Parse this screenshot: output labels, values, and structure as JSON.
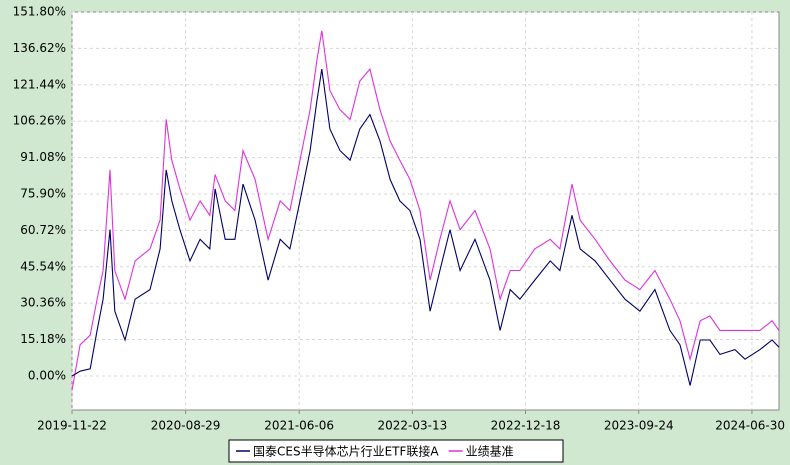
{
  "chart_data": {
    "type": "line",
    "x": [
      "2019-11-22",
      "2019-12-12",
      "2020-01-06",
      "2020-01-23",
      "2020-02-07",
      "2020-02-24",
      "2020-03-07",
      "2020-04-01",
      "2020-04-26",
      "2020-06-02",
      "2020-06-27",
      "2020-07-12",
      "2020-07-26",
      "2020-08-15",
      "2020-09-09",
      "2020-10-04",
      "2020-10-28",
      "2020-11-10",
      "2020-12-05",
      "2020-12-29",
      "2021-01-18",
      "2021-02-17",
      "2021-03-21",
      "2021-04-20",
      "2021-05-14",
      "2021-06-08",
      "2021-07-03",
      "2021-07-20",
      "2021-08-01",
      "2021-08-21",
      "2021-09-15",
      "2021-10-10",
      "2021-11-03",
      "2021-11-28",
      "2021-12-23",
      "2022-01-17",
      "2022-02-10",
      "2022-03-07",
      "2022-04-01",
      "2022-04-26",
      "2022-05-20",
      "2022-06-14",
      "2022-07-09",
      "2022-08-15",
      "2022-09-21",
      "2022-10-16",
      "2022-11-10",
      "2022-12-04",
      "2023-01-10",
      "2023-02-17",
      "2023-03-13",
      "2023-04-12",
      "2023-05-02",
      "2023-06-08",
      "2023-07-15",
      "2023-08-21",
      "2023-09-27",
      "2023-11-03",
      "2023-12-10",
      "2024-01-04",
      "2024-01-29",
      "2024-02-23",
      "2024-03-18",
      "2024-04-12",
      "2024-05-19",
      "2024-06-13",
      "2024-07-20",
      "2024-08-19",
      "2024-09-05"
    ],
    "series": [
      {
        "name": "国泰CES半导体芯片行业ETF联接A",
        "color": "#000066",
        "values": [
          0,
          2,
          3,
          19,
          32,
          61,
          27,
          15,
          32,
          36,
          53,
          86,
          73,
          61,
          48,
          57,
          53,
          78,
          57,
          57,
          80,
          65,
          40,
          57,
          53,
          73,
          94,
          115,
          128,
          103,
          94,
          90,
          103,
          109,
          98,
          82,
          73,
          69,
          57,
          27,
          44,
          61,
          44,
          57,
          40,
          19,
          36,
          32,
          40,
          48,
          44,
          67,
          53,
          48,
          40,
          32,
          27,
          36,
          19,
          13,
          -4,
          15,
          15,
          9,
          11,
          7,
          11,
          15,
          12
        ]
      },
      {
        "name": "业绩基准",
        "color": "#dd33dd",
        "values": [
          -6,
          13,
          17,
          32,
          44,
          86,
          44,
          32,
          48,
          53,
          65,
          107,
          90,
          78,
          65,
          73,
          67,
          84,
          73,
          69,
          94,
          82,
          57,
          73,
          69,
          90,
          111,
          132,
          144,
          119,
          111,
          107,
          123,
          128,
          111,
          98,
          90,
          82,
          69,
          40,
          57,
          73,
          61,
          69,
          53,
          32,
          44,
          44,
          53,
          57,
          53,
          80,
          65,
          57,
          48,
          40,
          36,
          44,
          32,
          23,
          7,
          23,
          25,
          19,
          19,
          19,
          19,
          23,
          19
        ]
      }
    ],
    "xlim": [
      "2019-11-22",
      "2024-09-05"
    ],
    "xticks": [
      "2019-11-22",
      "2020-08-29",
      "2021-06-06",
      "2022-03-13",
      "2022-12-18",
      "2023-09-24",
      "2024-06-30"
    ],
    "ylim": [
      -14.2,
      151.8
    ],
    "yticks": [
      {
        "value": 0,
        "label": "0.00%"
      },
      {
        "value": 15.18,
        "label": "15.18%"
      },
      {
        "value": 30.36,
        "label": "30.36%"
      },
      {
        "value": 45.54,
        "label": "45.54%"
      },
      {
        "value": 60.72,
        "label": "60.72%"
      },
      {
        "value": 75.9,
        "label": "75.90%"
      },
      {
        "value": 91.08,
        "label": "91.08%"
      },
      {
        "value": 106.26,
        "label": "106.26%"
      },
      {
        "value": 121.44,
        "label": "121.44%"
      },
      {
        "value": 136.62,
        "label": "136.62%"
      },
      {
        "value": 151.8,
        "label": "151.80%"
      }
    ],
    "grid": true
  }
}
